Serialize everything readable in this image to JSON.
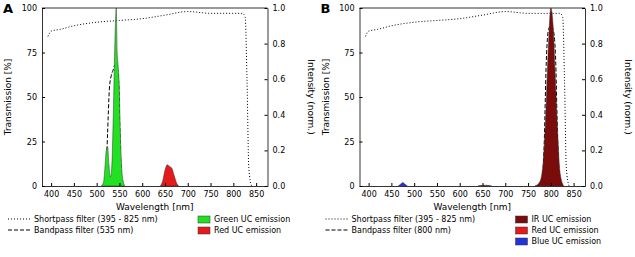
{
  "chart_data": [
    {
      "type": "line",
      "title": "A",
      "xlabel": "Wavelength [nm]",
      "ylabel": "Transmission [%]",
      "y2label": "Intensity (norm.)",
      "xlim": [
        380,
        875
      ],
      "xticks": [
        400,
        450,
        500,
        550,
        600,
        650,
        700,
        750,
        800,
        850
      ],
      "ylim": [
        0,
        100
      ],
      "yticks": [
        0,
        25,
        50,
        75,
        100
      ],
      "y2lim": [
        0,
        1
      ],
      "y2ticks": [
        {
          "value": 0,
          "label": "0.0"
        },
        {
          "value": 0.2,
          "label": "0.2"
        },
        {
          "value": 0.4,
          "label": "0.4"
        },
        {
          "value": 0.6,
          "label": "0.6"
        },
        {
          "value": 0.8,
          "label": "0.8"
        },
        {
          "value": 1,
          "label": "1.0"
        }
      ],
      "legend": "bottom",
      "series": [
        {
          "name": "Shortpass filter (395 - 825 nm)",
          "type": "line",
          "line_style": "dotted",
          "color": "#000000",
          "x": [
            393,
            400,
            420,
            450,
            500,
            550,
            600,
            650,
            700,
            750,
            800,
            820,
            826,
            830,
            834,
            840
          ],
          "values": [
            84,
            87,
            88,
            90,
            92,
            93,
            94,
            96,
            98,
            97,
            97,
            97,
            95,
            60,
            10,
            0
          ]
        },
        {
          "name": "Bandpass filter (535 nm)",
          "type": "line",
          "line_style": "dashed",
          "color": "#000000",
          "x": [
            515,
            520,
            524,
            528,
            532,
            536,
            540,
            544,
            548,
            552,
            556
          ],
          "values": [
            0,
            5,
            30,
            55,
            62,
            65,
            68,
            67,
            60,
            20,
            0
          ]
        },
        {
          "name": "Green UC emission",
          "type": "area",
          "axis": "y2",
          "color": "#22e022",
          "x": [
            510,
            515,
            518,
            521,
            524,
            527,
            530,
            533,
            536,
            539,
            541,
            543,
            545,
            547,
            549,
            552,
            555,
            558,
            562
          ],
          "values": [
            0,
            0.02,
            0.1,
            0.2,
            0.22,
            0.12,
            0.05,
            0.1,
            0.35,
            0.7,
            0.9,
            1.0,
            0.75,
            0.68,
            0.6,
            0.3,
            0.1,
            0.03,
            0
          ]
        },
        {
          "name": "Red UC emission",
          "type": "area",
          "axis": "y2",
          "color": "#e41a1c",
          "x": [
            640,
            645,
            650,
            655,
            660,
            665,
            670,
            675,
            680
          ],
          "values": [
            0,
            0.03,
            0.09,
            0.12,
            0.11,
            0.1,
            0.06,
            0.02,
            0
          ]
        }
      ]
    },
    {
      "type": "line",
      "title": "B",
      "xlabel": "Wavelength [nm]",
      "ylabel": "Transmission [%]",
      "y2label": "Intensity (norm.)",
      "xlim": [
        380,
        875
      ],
      "xticks": [
        400,
        450,
        500,
        550,
        600,
        650,
        700,
        750,
        800,
        850
      ],
      "ylim": [
        0,
        100
      ],
      "yticks": [
        0,
        25,
        50,
        75,
        100
      ],
      "y2lim": [
        0,
        1
      ],
      "y2ticks": [
        {
          "value": 0,
          "label": "0.0"
        },
        {
          "value": 0.2,
          "label": "0.2"
        },
        {
          "value": 0.4,
          "label": "0.4"
        },
        {
          "value": 0.6,
          "label": "0.6"
        },
        {
          "value": 0.8,
          "label": "0.8"
        },
        {
          "value": 1,
          "label": "1.0"
        }
      ],
      "legend": "bottom",
      "series": [
        {
          "name": "Shortpass filter (395 - 825 nm)",
          "type": "line",
          "line_style": "dotted",
          "color": "#000000",
          "x": [
            393,
            400,
            420,
            450,
            500,
            550,
            600,
            650,
            700,
            750,
            800,
            820,
            826,
            830,
            834,
            840
          ],
          "values": [
            84,
            87,
            88,
            90,
            92,
            93,
            94,
            96,
            98,
            97,
            97,
            97,
            95,
            60,
            10,
            0
          ]
        },
        {
          "name": "Bandpass filter (800 nm)",
          "type": "line",
          "line_style": "dashed",
          "color": "#000000",
          "x": [
            780,
            785,
            790,
            795,
            800,
            805,
            810,
            815,
            820
          ],
          "values": [
            0,
            20,
            70,
            88,
            90,
            88,
            75,
            25,
            0
          ]
        },
        {
          "name": "IR UC emission",
          "type": "area",
          "axis": "y2",
          "color": "#7a0c0c",
          "x": [
            765,
            775,
            782,
            788,
            794,
            800,
            805,
            810,
            815,
            820,
            828
          ],
          "values": [
            0,
            0.02,
            0.1,
            0.35,
            0.75,
            1.0,
            0.9,
            0.6,
            0.3,
            0.08,
            0
          ]
        },
        {
          "name": "Red UC emission",
          "type": "area",
          "axis": "y2",
          "color": "#e41a1c",
          "x": [
            640,
            650,
            660,
            670
          ],
          "values": [
            0,
            0.004,
            0.004,
            0
          ]
        },
        {
          "name": "Blue UC emission",
          "type": "area",
          "axis": "y2",
          "color": "#2233dd",
          "x": [
            465,
            470,
            475,
            480,
            485
          ],
          "values": [
            0,
            0.01,
            0.02,
            0.01,
            0
          ]
        }
      ]
    }
  ]
}
